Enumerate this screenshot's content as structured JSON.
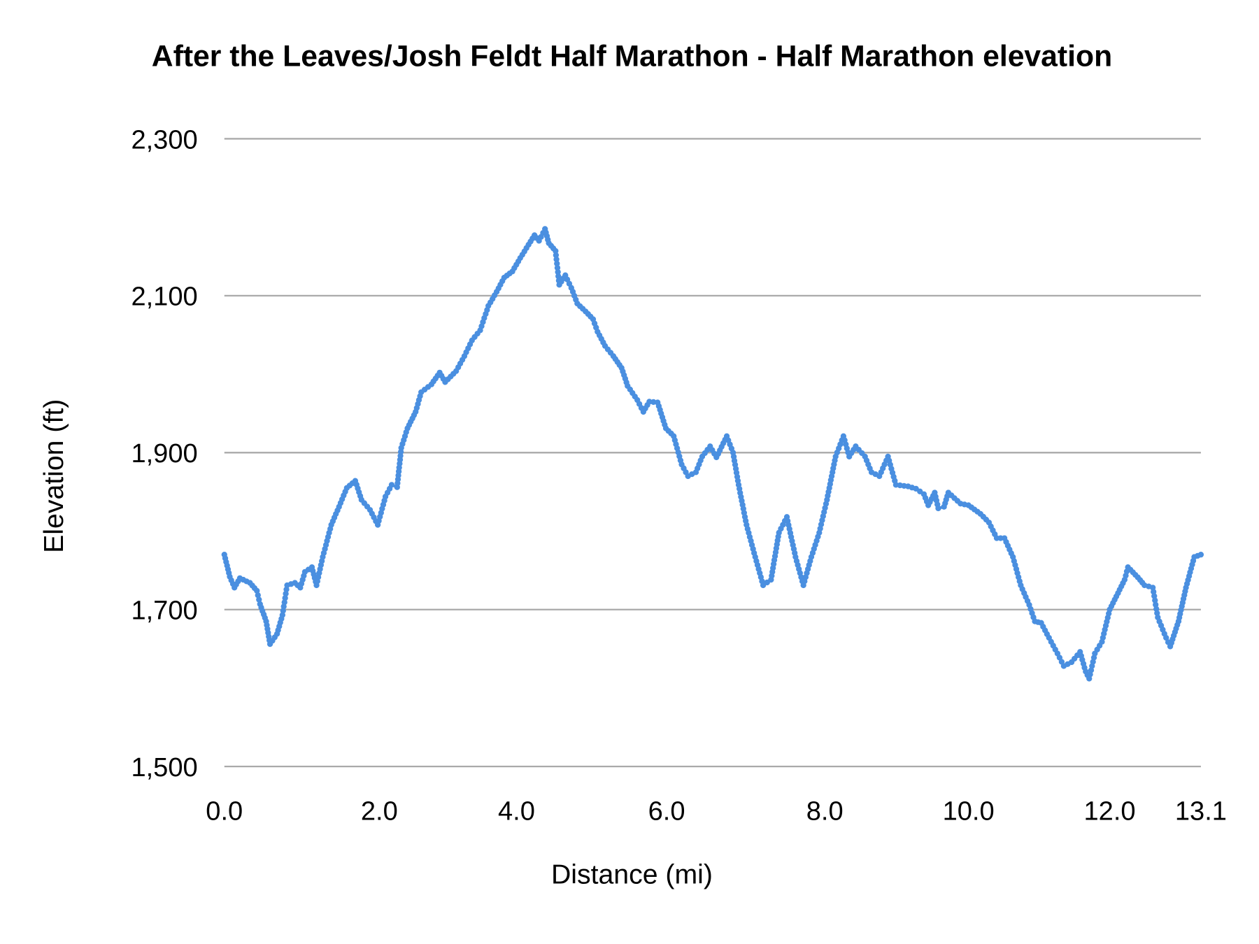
{
  "chart_data": {
    "type": "line",
    "title": "After the Leaves/Josh Feldt Half Marathon - Half Marathon elevation",
    "xlabel": "Distance (mi)",
    "ylabel": "Elevation (ft)",
    "ylim": [
      1500,
      2300
    ],
    "xlim": [
      0,
      13.1
    ],
    "grid": "horizontal",
    "line_color": "#4a8fe0",
    "markers": true,
    "y_ticks": [
      {
        "value": 1500,
        "label": "1,500"
      },
      {
        "value": 1700,
        "label": "1,700"
      },
      {
        "value": 1900,
        "label": "1,900"
      },
      {
        "value": 2100,
        "label": "2,100"
      },
      {
        "value": 2300,
        "label": "2,300"
      }
    ],
    "x_ticks": [
      {
        "value": 0,
        "label": "0.0"
      },
      {
        "value": 2,
        "label": "2.0"
      },
      {
        "value": 4,
        "label": "4.0"
      },
      {
        "value": 6,
        "label": "6.0"
      },
      {
        "value": 8,
        "label": "8.0"
      },
      {
        "value": 10,
        "label": "10.0"
      },
      {
        "value": 12,
        "label": "12.0"
      },
      {
        "value": 13.1,
        "label": "13.1"
      }
    ],
    "x": [
      0,
      0.07,
      0.13,
      0.2,
      0.33,
      0.42,
      0.46,
      0.54,
      0.59,
      0.68,
      0.75,
      0.81,
      0.91,
      0.98,
      1.04,
      1.13,
      1.19,
      1.27,
      1.38,
      1.48,
      1.58,
      1.69,
      1.77,
      1.88,
      1.98,
      2.09,
      2.18,
      2.26,
      2.32,
      2.41,
      2.53,
      2.61,
      2.76,
      2.88,
      2.96,
      3.12,
      3.24,
      3.35,
      3.47,
      3.59,
      3.71,
      3.82,
      3.94,
      4.05,
      4.16,
      4.24,
      4.3,
      4.38,
      4.43,
      4.52,
      4.57,
      4.65,
      4.73,
      4.81,
      4.92,
      5.02,
      5.08,
      5.18,
      5.29,
      5.4,
      5.48,
      5.61,
      5.69,
      5.77,
      5.88,
      5.99,
      6.09,
      6.19,
      6.27,
      6.37,
      6.45,
      6.55,
      6.63,
      6.76,
      6.84,
      6.91,
      7.01,
      7.12,
      7.22,
      7.32,
      7.42,
      7.52,
      7.63,
      7.73,
      7.83,
      7.93,
      8.03,
      8.15,
      8.26,
      8.34,
      8.43,
      8.56,
      8.65,
      8.76,
      8.88,
      8.99,
      9.16,
      9.27,
      9.38,
      9.44,
      9.53,
      9.58,
      9.66,
      9.72,
      9.89,
      10.0,
      10.17,
      10.29,
      10.4,
      10.51,
      10.63,
      10.74,
      10.86,
      10.94,
      11.03,
      11.14,
      11.26,
      11.35,
      11.46,
      11.58,
      11.66,
      11.71,
      11.79,
      11.89,
      12.0,
      12.1,
      12.18,
      12.22,
      12.34,
      12.42,
      12.52,
      12.58,
      12.68,
      12.73,
      12.83,
      12.92,
      13.02,
      13.1
    ],
    "y": [
      1770,
      1742,
      1728,
      1740,
      1734,
      1724,
      1707,
      1685,
      1656,
      1669,
      1693,
      1731,
      1734,
      1728,
      1748,
      1754,
      1731,
      1767,
      1808,
      1831,
      1855,
      1864,
      1840,
      1827,
      1808,
      1844,
      1859,
      1856,
      1906,
      1931,
      1952,
      1977,
      1987,
      2002,
      1990,
      2004,
      2023,
      2043,
      2056,
      2087,
      2105,
      2123,
      2131,
      2148,
      2165,
      2177,
      2170,
      2185,
      2167,
      2157,
      2114,
      2126,
      2110,
      2090,
      2080,
      2070,
      2054,
      2036,
      2023,
      2008,
      1985,
      1967,
      1952,
      1965,
      1964,
      1931,
      1921,
      1885,
      1870,
      1875,
      1895,
      1908,
      1894,
      1921,
      1900,
      1859,
      1808,
      1767,
      1731,
      1738,
      1798,
      1818,
      1767,
      1731,
      1767,
      1798,
      1840,
      1895,
      1921,
      1895,
      1908,
      1895,
      1875,
      1870,
      1895,
      1859,
      1857,
      1854,
      1847,
      1833,
      1849,
      1829,
      1831,
      1849,
      1835,
      1833,
      1822,
      1811,
      1791,
      1791,
      1767,
      1731,
      1706,
      1685,
      1683,
      1664,
      1644,
      1628,
      1633,
      1646,
      1621,
      1612,
      1644,
      1659,
      1700,
      1721,
      1738,
      1754,
      1741,
      1731,
      1728,
      1690,
      1664,
      1653,
      1685,
      1728,
      1767,
      1770
    ]
  }
}
